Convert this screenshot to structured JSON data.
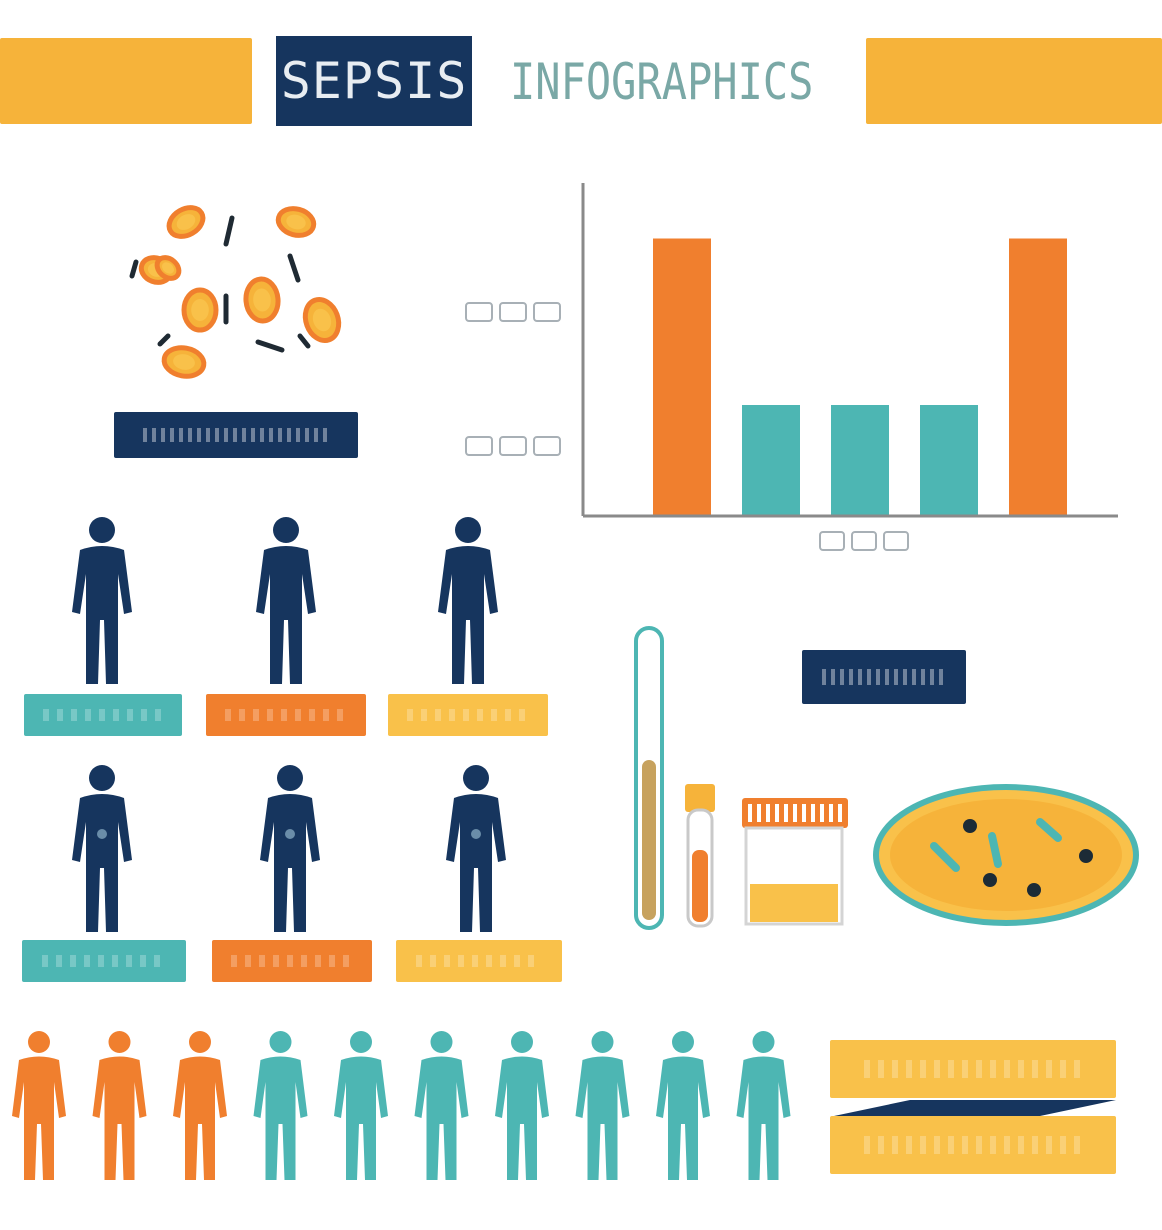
{
  "header": {
    "title_highlight": "SEPSIS",
    "title_rest": "INFOGRAPHICS"
  },
  "colors": {
    "orange": "#f07f2e",
    "amber": "#f6b33a",
    "yellow": "#f9c14a",
    "teal": "#4db6b3",
    "navy": "#16355e",
    "axis": "#8a8a8a"
  },
  "icons": {
    "bacteria": "bacteria-cluster-icon",
    "person": "person-silhouette-icon",
    "thermometer": "thermometer-icon",
    "vial": "blood-vial-icon",
    "jar": "sample-jar-icon",
    "petri": "petri-dish-icon"
  },
  "chart_data": {
    "type": "bar",
    "categories": [
      "",
      "",
      "",
      "",
      ""
    ],
    "values": [
      100,
      40,
      40,
      40,
      100
    ],
    "bar_colors": [
      "orange",
      "teal",
      "teal",
      "teal",
      "orange"
    ],
    "title": "",
    "xlabel": "",
    "ylabel": "",
    "ylim": [
      0,
      120
    ],
    "grid": false
  },
  "people_rows": {
    "row1_label_colors": [
      "teal",
      "orange",
      "yellow"
    ],
    "row2_label_colors": [
      "teal",
      "orange",
      "yellow"
    ]
  },
  "population": {
    "total": 10,
    "highlighted": 3,
    "highlight_color": "orange",
    "rest_color": "teal"
  }
}
